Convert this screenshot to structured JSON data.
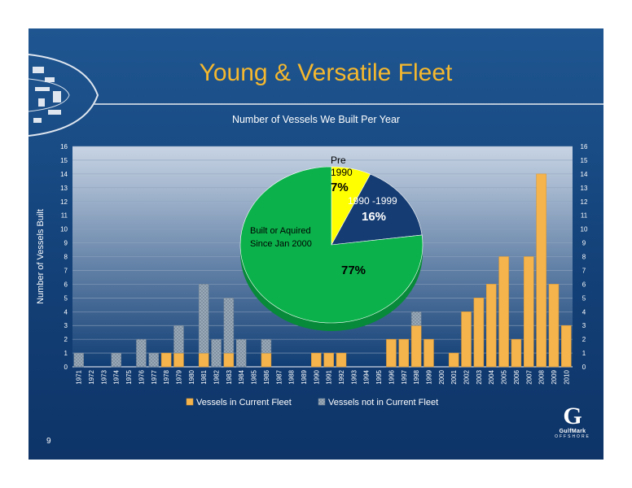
{
  "slide": {
    "title": "Young & Versatile Fleet",
    "logo_text": "GulfMark",
    "logo_sub": "OFFSHORE",
    "logo_mark": "G",
    "page_number": "9"
  },
  "colors": {
    "title": "#f5b82e",
    "current": "#f6b44c",
    "not_current": "#9aa9b8",
    "pie_pre1990": "#ffff00",
    "pie_1990s": "#163d73",
    "pie_2000": "#0bb24b"
  },
  "chart_data": [
    {
      "type": "bar",
      "title": "Number of Vessels We Built Per Year",
      "ylabel": "Number of Vessels Built",
      "xlabel": "",
      "ylim": [
        0,
        16
      ],
      "yticks": [
        0,
        1,
        2,
        3,
        4,
        5,
        6,
        7,
        8,
        9,
        10,
        11,
        12,
        13,
        14,
        15,
        16
      ],
      "grid": true,
      "stacked": true,
      "legend": "bottom",
      "categories": [
        "1971",
        "1972",
        "1973",
        "1974",
        "1975",
        "1976",
        "1977",
        "1978",
        "1979",
        "1980",
        "1981",
        "1982",
        "1983",
        "1984",
        "1985",
        "1986",
        "1987",
        "1988",
        "1989",
        "1990",
        "1991",
        "1992",
        "1993",
        "1994",
        "1995",
        "1996",
        "1997",
        "1998",
        "1999",
        "2000",
        "2001",
        "2002",
        "2003",
        "2004",
        "2005",
        "2006",
        "2007",
        "2008",
        "2009",
        "2010"
      ],
      "series": [
        {
          "name": "Vessels in Current Fleet",
          "values": [
            0,
            0,
            0,
            0,
            0,
            0,
            0,
            1,
            1,
            0,
            1,
            0,
            1,
            0,
            0,
            1,
            0,
            0,
            0,
            1,
            1,
            1,
            0,
            0,
            0,
            2,
            2,
            3,
            2,
            0,
            1,
            4,
            5,
            6,
            8,
            2,
            8,
            14,
            6,
            3
          ]
        },
        {
          "name": "Vessels not in Current Fleet",
          "values": [
            1,
            0,
            0,
            1,
            0,
            2,
            1,
            0,
            2,
            0,
            5,
            2,
            4,
            2,
            0,
            1,
            0,
            0,
            0,
            0,
            0,
            0,
            0,
            0,
            0,
            0,
            0,
            1,
            0,
            0,
            0,
            0,
            0,
            0,
            0,
            0,
            0,
            0,
            0,
            0
          ]
        }
      ]
    },
    {
      "type": "pie",
      "slices": [
        {
          "label_lines": [
            "Pre",
            "1990"
          ],
          "percent_text": "7%",
          "value": 7
        },
        {
          "label_lines": [
            "1990 -1999"
          ],
          "percent_text": "16%",
          "value": 16
        },
        {
          "label_lines": [
            "Built or Aquired",
            "Since Jan 2000"
          ],
          "percent_text": "77%",
          "value": 77
        }
      ]
    }
  ]
}
